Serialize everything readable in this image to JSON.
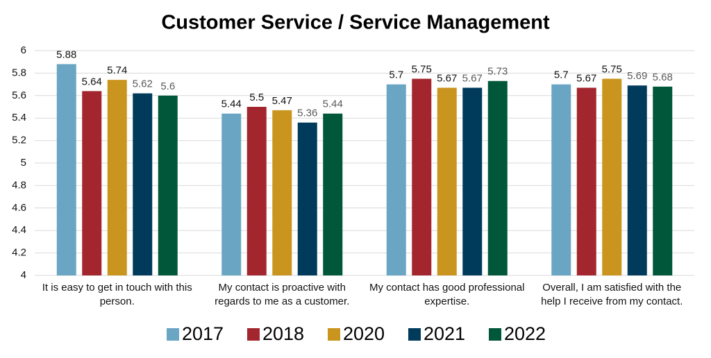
{
  "chart_data": {
    "type": "bar",
    "title": "Customer Service / Service Management",
    "categories": [
      "It is easy to get in touch with this person.",
      "My contact is proactive with regards to me as a customer.",
      "My contact has good professional expertise.",
      "Overall, I am satisfied with the help I receive from my contact."
    ],
    "series": [
      {
        "name": "2017",
        "color": "#6aa6c4",
        "values": [
          5.88,
          5.44,
          5.7,
          5.7
        ]
      },
      {
        "name": "2018",
        "color": "#a3262e",
        "values": [
          5.64,
          5.5,
          5.75,
          5.67
        ]
      },
      {
        "name": "2020",
        "color": "#c9951e",
        "values": [
          5.74,
          5.47,
          5.67,
          5.75
        ]
      },
      {
        "name": "2021",
        "color": "#003b5c",
        "values": [
          5.62,
          5.36,
          5.67,
          5.69
        ]
      },
      {
        "name": "2022",
        "color": "#00573a",
        "values": [
          5.6,
          5.44,
          5.73,
          5.68
        ]
      }
    ],
    "ylim": [
      4,
      6
    ],
    "yticks": [
      4,
      4.2,
      4.4,
      4.6,
      4.8,
      5,
      5.2,
      5.4,
      5.6,
      5.8,
      6
    ],
    "grid": true,
    "legend": "bottom"
  }
}
